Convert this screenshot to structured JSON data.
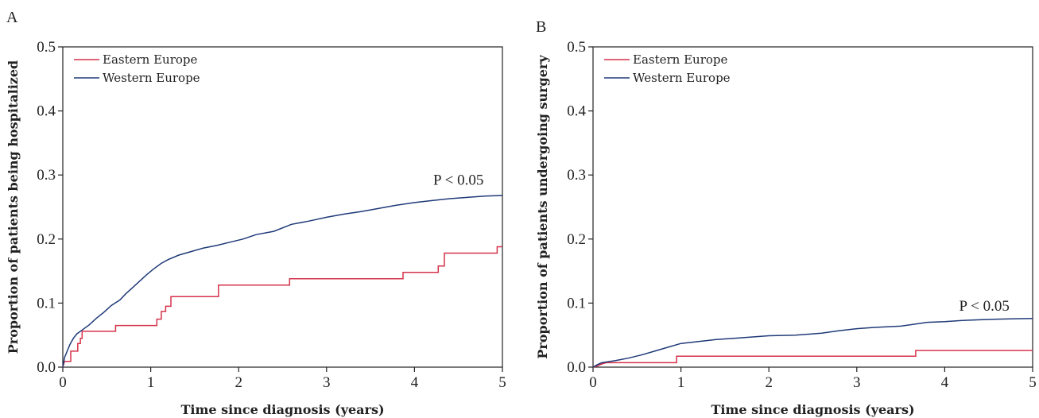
{
  "colors": {
    "eastern": "#d6334a",
    "western": "#1f3a78",
    "axis": "#222222"
  },
  "chart_data": [
    {
      "type": "line",
      "panel_label": "A",
      "xlabel": "Time since diagnosis (years)",
      "ylabel": "Proportion of patients being hospitalized",
      "xlim": [
        0,
        5
      ],
      "ylim": [
        0,
        0.5
      ],
      "xticks": [
        "0",
        "1",
        "2",
        "3",
        "4",
        "5"
      ],
      "yticks": [
        "0.0",
        "0.1",
        "0.2",
        "0.3",
        "0.4",
        "0.5"
      ],
      "annotation": "P < 0.05",
      "annotation_at": [
        4.5,
        0.285
      ],
      "legend": [
        "Eastern Europe",
        "Western Europe"
      ],
      "series": [
        {
          "name": "Eastern Europe",
          "color": "#d6334a",
          "points": [
            [
              0,
              0
            ],
            [
              0.02,
              0.009
            ],
            [
              0.09,
              0.009
            ],
            [
              0.09,
              0.025
            ],
            [
              0.17,
              0.025
            ],
            [
              0.17,
              0.037
            ],
            [
              0.2,
              0.037
            ],
            [
              0.2,
              0.045
            ],
            [
              0.22,
              0.045
            ],
            [
              0.22,
              0.056
            ],
            [
              0.6,
              0.056
            ],
            [
              0.6,
              0.065
            ],
            [
              1.07,
              0.065
            ],
            [
              1.07,
              0.075
            ],
            [
              1.12,
              0.075
            ],
            [
              1.12,
              0.087
            ],
            [
              1.17,
              0.087
            ],
            [
              1.17,
              0.095
            ],
            [
              1.23,
              0.095
            ],
            [
              1.23,
              0.11
            ],
            [
              1.77,
              0.11
            ],
            [
              1.77,
              0.128
            ],
            [
              2.58,
              0.128
            ],
            [
              2.58,
              0.138
            ],
            [
              3.87,
              0.138
            ],
            [
              3.87,
              0.148
            ],
            [
              4.27,
              0.148
            ],
            [
              4.27,
              0.158
            ],
            [
              4.34,
              0.158
            ],
            [
              4.34,
              0.178
            ],
            [
              4.94,
              0.178
            ],
            [
              4.94,
              0.188
            ],
            [
              5,
              0.188
            ]
          ]
        },
        {
          "name": "Western Europe",
          "color": "#1f3a78",
          "points": [
            [
              0,
              0
            ],
            [
              0.02,
              0.015
            ],
            [
              0.05,
              0.025
            ],
            [
              0.08,
              0.035
            ],
            [
              0.12,
              0.045
            ],
            [
              0.16,
              0.052
            ],
            [
              0.22,
              0.058
            ],
            [
              0.3,
              0.066
            ],
            [
              0.38,
              0.076
            ],
            [
              0.47,
              0.086
            ],
            [
              0.55,
              0.096
            ],
            [
              0.65,
              0.105
            ],
            [
              0.72,
              0.115
            ],
            [
              0.8,
              0.125
            ],
            [
              0.88,
              0.135
            ],
            [
              0.96,
              0.145
            ],
            [
              1.03,
              0.153
            ],
            [
              1.12,
              0.162
            ],
            [
              1.2,
              0.168
            ],
            [
              1.32,
              0.175
            ],
            [
              1.45,
              0.18
            ],
            [
              1.6,
              0.186
            ],
            [
              1.75,
              0.19
            ],
            [
              1.9,
              0.195
            ],
            [
              2.05,
              0.2
            ],
            [
              2.2,
              0.207
            ],
            [
              2.4,
              0.212
            ],
            [
              2.6,
              0.223
            ],
            [
              2.8,
              0.228
            ],
            [
              3.0,
              0.234
            ],
            [
              3.2,
              0.239
            ],
            [
              3.4,
              0.243
            ],
            [
              3.6,
              0.248
            ],
            [
              3.8,
              0.253
            ],
            [
              4.0,
              0.257
            ],
            [
              4.2,
              0.26
            ],
            [
              4.4,
              0.263
            ],
            [
              4.6,
              0.265
            ],
            [
              4.8,
              0.267
            ],
            [
              5.0,
              0.268
            ]
          ]
        }
      ]
    },
    {
      "type": "line",
      "panel_label": "B",
      "xlabel": "Time since diagnosis (years)",
      "ylabel": "Proportion of patients undergoing surgery",
      "xlim": [
        0,
        5
      ],
      "ylim": [
        0,
        0.5
      ],
      "xticks": [
        "0",
        "1",
        "2",
        "3",
        "4",
        "5"
      ],
      "yticks": [
        "0.0",
        "0.1",
        "0.2",
        "0.3",
        "0.4",
        "0.5"
      ],
      "annotation": "P < 0.05",
      "annotation_at": [
        4.45,
        0.088
      ],
      "legend": [
        "Eastern Europe",
        "Western Europe"
      ],
      "series": [
        {
          "name": "Eastern Europe",
          "color": "#d6334a",
          "points": [
            [
              0,
              0
            ],
            [
              0.05,
              0.002
            ],
            [
              0.1,
              0.005
            ],
            [
              0.15,
              0.007
            ],
            [
              0.95,
              0.007
            ],
            [
              0.95,
              0.017
            ],
            [
              3.67,
              0.017
            ],
            [
              3.67,
              0.026
            ],
            [
              5,
              0.026
            ]
          ]
        },
        {
          "name": "Western Europe",
          "color": "#1f3a78",
          "points": [
            [
              0,
              0
            ],
            [
              0.05,
              0.004
            ],
            [
              0.1,
              0.007
            ],
            [
              0.25,
              0.01
            ],
            [
              0.4,
              0.014
            ],
            [
              0.55,
              0.019
            ],
            [
              0.7,
              0.025
            ],
            [
              0.85,
              0.031
            ],
            [
              1.0,
              0.037
            ],
            [
              1.2,
              0.04
            ],
            [
              1.4,
              0.043
            ],
            [
              1.6,
              0.045
            ],
            [
              1.8,
              0.047
            ],
            [
              2.0,
              0.049
            ],
            [
              2.3,
              0.05
            ],
            [
              2.6,
              0.053
            ],
            [
              2.8,
              0.057
            ],
            [
              3.0,
              0.06
            ],
            [
              3.2,
              0.062
            ],
            [
              3.5,
              0.064
            ],
            [
              3.8,
              0.07
            ],
            [
              4.0,
              0.071
            ],
            [
              4.2,
              0.073
            ],
            [
              4.4,
              0.074
            ],
            [
              4.6,
              0.075
            ],
            [
              5.0,
              0.076
            ]
          ]
        }
      ]
    }
  ]
}
